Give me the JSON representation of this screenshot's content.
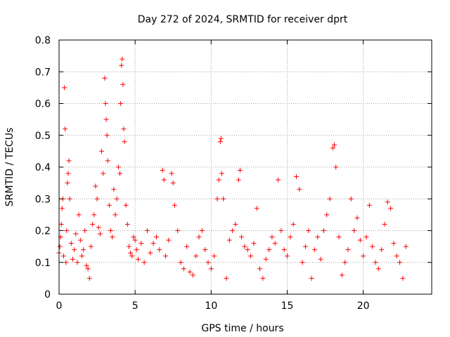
{
  "chart_data": {
    "type": "scatter",
    "title": "Day 272 of 2024, SRMTID for receiver dprt",
    "xlabel": "GPS time / hours",
    "ylabel": "SRMTID / TECUs",
    "xlim": [
      0,
      24.5
    ],
    "ylim": [
      0,
      0.8
    ],
    "xticks": [
      0,
      5,
      10,
      15,
      20
    ],
    "xtick_labels": [
      "0",
      "5",
      "10",
      "15",
      "20"
    ],
    "yticks": [
      0,
      0.1,
      0.2,
      0.3,
      0.4,
      0.5,
      0.6,
      0.7,
      0.8
    ],
    "ytick_labels": [
      "0",
      "0.1",
      "0.2",
      "0.3",
      "0.4",
      "0.5",
      "0.6",
      "0.7",
      "0.8"
    ],
    "grid": true,
    "marker": "+",
    "series": [
      {
        "name": "SRMTID",
        "color": "#ff0000",
        "points": [
          [
            0.0,
            0.13
          ],
          [
            0.05,
            0.15
          ],
          [
            0.1,
            0.18
          ],
          [
            0.15,
            0.22
          ],
          [
            0.2,
            0.27
          ],
          [
            0.25,
            0.3
          ],
          [
            0.3,
            0.12
          ],
          [
            0.35,
            0.65
          ],
          [
            0.4,
            0.52
          ],
          [
            0.45,
            0.1
          ],
          [
            0.5,
            0.2
          ],
          [
            0.55,
            0.35
          ],
          [
            0.6,
            0.38
          ],
          [
            0.65,
            0.42
          ],
          [
            0.7,
            0.3
          ],
          [
            0.8,
            0.16
          ],
          [
            0.9,
            0.11
          ],
          [
            1.0,
            0.14
          ],
          [
            1.1,
            0.19
          ],
          [
            1.2,
            0.1
          ],
          [
            1.3,
            0.25
          ],
          [
            1.4,
            0.17
          ],
          [
            1.5,
            0.12
          ],
          [
            1.6,
            0.14
          ],
          [
            1.7,
            0.2
          ],
          [
            1.8,
            0.09
          ],
          [
            1.9,
            0.08
          ],
          [
            2.0,
            0.05
          ],
          [
            2.1,
            0.15
          ],
          [
            2.2,
            0.22
          ],
          [
            2.3,
            0.25
          ],
          [
            2.4,
            0.34
          ],
          [
            2.5,
            0.3
          ],
          [
            2.6,
            0.21
          ],
          [
            2.7,
            0.19
          ],
          [
            2.8,
            0.45
          ],
          [
            2.9,
            0.38
          ],
          [
            3.0,
            0.68
          ],
          [
            3.05,
            0.6
          ],
          [
            3.1,
            0.55
          ],
          [
            3.15,
            0.5
          ],
          [
            3.2,
            0.42
          ],
          [
            3.3,
            0.28
          ],
          [
            3.4,
            0.2
          ],
          [
            3.5,
            0.18
          ],
          [
            3.6,
            0.33
          ],
          [
            3.7,
            0.25
          ],
          [
            3.8,
            0.3
          ],
          [
            3.9,
            0.4
          ],
          [
            4.0,
            0.38
          ],
          [
            4.05,
            0.6
          ],
          [
            4.1,
            0.72
          ],
          [
            4.15,
            0.74
          ],
          [
            4.2,
            0.66
          ],
          [
            4.25,
            0.52
          ],
          [
            4.3,
            0.48
          ],
          [
            4.4,
            0.28
          ],
          [
            4.5,
            0.22
          ],
          [
            4.6,
            0.15
          ],
          [
            4.7,
            0.13
          ],
          [
            4.8,
            0.12
          ],
          [
            4.9,
            0.18
          ],
          [
            5.0,
            0.17
          ],
          [
            5.1,
            0.14
          ],
          [
            5.2,
            0.11
          ],
          [
            5.4,
            0.16
          ],
          [
            5.6,
            0.1
          ],
          [
            5.8,
            0.2
          ],
          [
            6.0,
            0.13
          ],
          [
            6.2,
            0.16
          ],
          [
            6.4,
            0.18
          ],
          [
            6.6,
            0.14
          ],
          [
            6.8,
            0.39
          ],
          [
            6.9,
            0.36
          ],
          [
            7.0,
            0.12
          ],
          [
            7.2,
            0.17
          ],
          [
            7.4,
            0.38
          ],
          [
            7.5,
            0.35
          ],
          [
            7.6,
            0.28
          ],
          [
            7.8,
            0.2
          ],
          [
            8.0,
            0.1
          ],
          [
            8.2,
            0.08
          ],
          [
            8.4,
            0.15
          ],
          [
            8.6,
            0.07
          ],
          [
            8.8,
            0.06
          ],
          [
            9.0,
            0.12
          ],
          [
            9.2,
            0.18
          ],
          [
            9.4,
            0.2
          ],
          [
            9.6,
            0.14
          ],
          [
            9.8,
            0.1
          ],
          [
            10.0,
            0.08
          ],
          [
            10.2,
            0.12
          ],
          [
            10.4,
            0.3
          ],
          [
            10.5,
            0.36
          ],
          [
            10.6,
            0.48
          ],
          [
            10.65,
            0.49
          ],
          [
            10.7,
            0.38
          ],
          [
            10.8,
            0.3
          ],
          [
            11.0,
            0.05
          ],
          [
            11.2,
            0.17
          ],
          [
            11.4,
            0.2
          ],
          [
            11.6,
            0.22
          ],
          [
            11.8,
            0.36
          ],
          [
            11.9,
            0.39
          ],
          [
            12.0,
            0.18
          ],
          [
            12.2,
            0.15
          ],
          [
            12.4,
            0.14
          ],
          [
            12.6,
            0.12
          ],
          [
            12.8,
            0.16
          ],
          [
            13.0,
            0.27
          ],
          [
            13.2,
            0.08
          ],
          [
            13.4,
            0.05
          ],
          [
            13.6,
            0.11
          ],
          [
            13.8,
            0.14
          ],
          [
            14.0,
            0.18
          ],
          [
            14.2,
            0.16
          ],
          [
            14.4,
            0.36
          ],
          [
            14.6,
            0.2
          ],
          [
            14.8,
            0.14
          ],
          [
            15.0,
            0.12
          ],
          [
            15.2,
            0.18
          ],
          [
            15.4,
            0.22
          ],
          [
            15.6,
            0.37
          ],
          [
            15.8,
            0.33
          ],
          [
            16.0,
            0.1
          ],
          [
            16.2,
            0.15
          ],
          [
            16.4,
            0.2
          ],
          [
            16.6,
            0.05
          ],
          [
            16.8,
            0.14
          ],
          [
            17.0,
            0.18
          ],
          [
            17.2,
            0.11
          ],
          [
            17.4,
            0.2
          ],
          [
            17.6,
            0.25
          ],
          [
            17.8,
            0.3
          ],
          [
            18.0,
            0.46
          ],
          [
            18.1,
            0.47
          ],
          [
            18.2,
            0.4
          ],
          [
            18.4,
            0.18
          ],
          [
            18.6,
            0.06
          ],
          [
            18.8,
            0.1
          ],
          [
            19.0,
            0.14
          ],
          [
            19.2,
            0.3
          ],
          [
            19.4,
            0.2
          ],
          [
            19.6,
            0.24
          ],
          [
            19.8,
            0.17
          ],
          [
            20.0,
            0.12
          ],
          [
            20.2,
            0.18
          ],
          [
            20.4,
            0.28
          ],
          [
            20.6,
            0.15
          ],
          [
            20.8,
            0.1
          ],
          [
            21.0,
            0.08
          ],
          [
            21.2,
            0.14
          ],
          [
            21.4,
            0.22
          ],
          [
            21.6,
            0.29
          ],
          [
            21.8,
            0.27
          ],
          [
            22.0,
            0.16
          ],
          [
            22.2,
            0.12
          ],
          [
            22.4,
            0.1
          ],
          [
            22.6,
            0.05
          ],
          [
            22.8,
            0.15
          ]
        ]
      }
    ]
  }
}
